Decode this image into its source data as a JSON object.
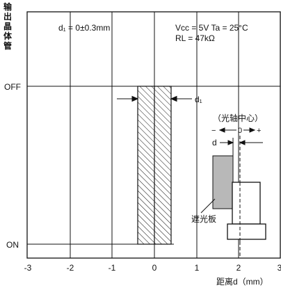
{
  "y_title_chars": [
    "输",
    "出",
    "晶",
    "体",
    "管"
  ],
  "y_labels": {
    "off": "OFF",
    "on": "ON"
  },
  "x_ticks": [
    "-3",
    "-2",
    "-1",
    "0",
    "1",
    "2",
    "3"
  ],
  "x_axis_title": "距离d（mm）",
  "annotations": {
    "d1_range": "d₁ = 0±0.3mm",
    "conditions_line1": "Vcc = 5V  Ta = 25°C",
    "conditions_line2": "RL = 47kΩ",
    "d1_marker": "d₁",
    "optical_center": "（光轴中心）",
    "minus_sign": "−",
    "zero": "0",
    "plus_sign": "+",
    "d_marker": "d",
    "shield_plate": "遮光板"
  },
  "colors": {
    "line": "#111111",
    "shield_fill": "#b8b8b8",
    "background": "#ffffff"
  }
}
